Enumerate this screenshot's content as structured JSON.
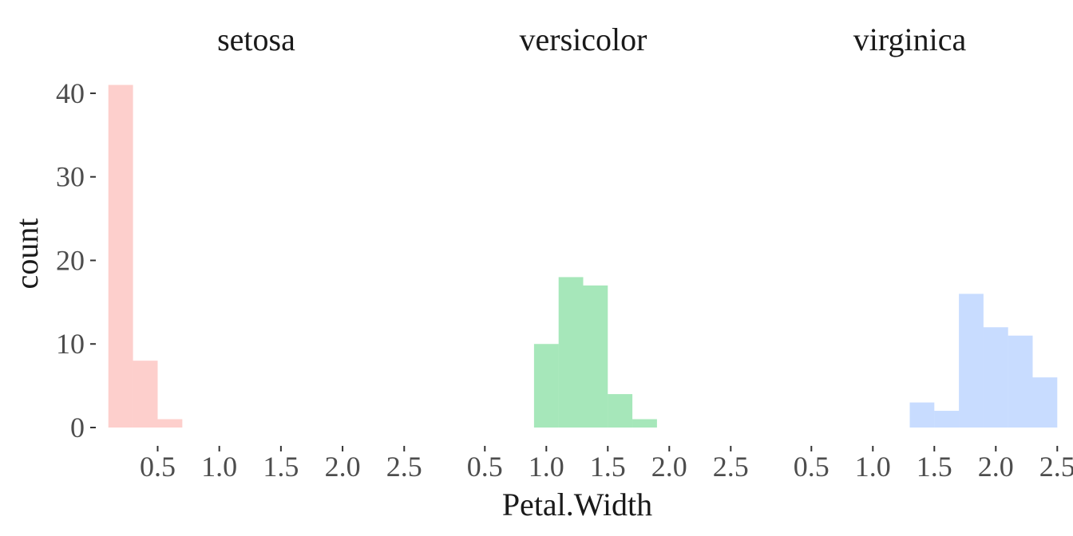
{
  "chart_data": {
    "type": "bar",
    "xlabel": "Petal.Width",
    "ylabel": "count",
    "ylim": [
      0,
      42
    ],
    "xlim": [
      0.05,
      2.55
    ],
    "x_ticks": [
      "0.5",
      "1.0",
      "1.5",
      "2.0",
      "2.5"
    ],
    "y_ticks": [
      "0",
      "10",
      "20",
      "30",
      "40"
    ],
    "grid": false,
    "bin_width": 0.2,
    "facets": [
      {
        "title": "setosa",
        "color": "#f8766d",
        "bins": [
          {
            "x_start": 0.1,
            "x_end": 0.3,
            "count": 41
          },
          {
            "x_start": 0.3,
            "x_end": 0.5,
            "count": 8
          },
          {
            "x_start": 0.5,
            "x_end": 0.7,
            "count": 1
          }
        ]
      },
      {
        "title": "versicolor",
        "color": "#00ba38",
        "bins": [
          {
            "x_start": 0.9,
            "x_end": 1.1,
            "count": 10
          },
          {
            "x_start": 1.1,
            "x_end": 1.3,
            "count": 18
          },
          {
            "x_start": 1.3,
            "x_end": 1.5,
            "count": 17
          },
          {
            "x_start": 1.5,
            "x_end": 1.7,
            "count": 4
          },
          {
            "x_start": 1.7,
            "x_end": 1.9,
            "count": 1
          }
        ]
      },
      {
        "title": "virginica",
        "color": "#619cff",
        "bins": [
          {
            "x_start": 1.3,
            "x_end": 1.5,
            "count": 3
          },
          {
            "x_start": 1.5,
            "x_end": 1.7,
            "count": 2
          },
          {
            "x_start": 1.7,
            "x_end": 1.9,
            "count": 16
          },
          {
            "x_start": 1.9,
            "x_end": 2.1,
            "count": 12
          },
          {
            "x_start": 2.1,
            "x_end": 2.3,
            "count": 11
          },
          {
            "x_start": 2.3,
            "x_end": 2.5,
            "count": 6
          }
        ]
      }
    ]
  }
}
